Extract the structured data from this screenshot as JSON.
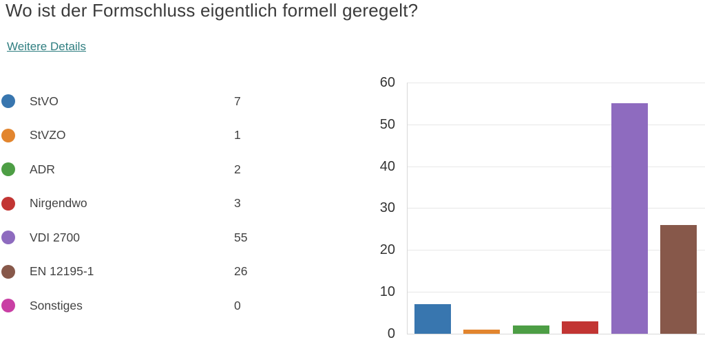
{
  "page": {
    "title": "Wo ist der Formschluss eigentlich formell geregelt?",
    "details_link": "Weitere Details"
  },
  "colors": {
    "link": "#2f7e80",
    "title_text": "#3b3b3b",
    "legend_text": "#424242",
    "axis_text": "#333333",
    "gridline": "#e7e7e7",
    "axis_line": "#d8d8d8",
    "background": "#ffffff"
  },
  "chart_data": {
    "type": "bar",
    "title": "",
    "xlabel": "",
    "ylabel": "",
    "categories": [
      "StVO",
      "StVZO",
      "ADR",
      "Nirgendwo",
      "VDI 2700",
      "EN 12195-1",
      "Sonstiges"
    ],
    "values": [
      7,
      1,
      2,
      3,
      55,
      26,
      0
    ],
    "colors": [
      "#3876af",
      "#e2852e",
      "#4d9e45",
      "#c23533",
      "#8e6bbf",
      "#87584a",
      "#c93fa4"
    ],
    "ylim": [
      0,
      60
    ],
    "yticks": [
      0,
      10,
      20,
      30,
      40,
      50,
      60
    ],
    "grid": true,
    "legend_position": "left"
  }
}
